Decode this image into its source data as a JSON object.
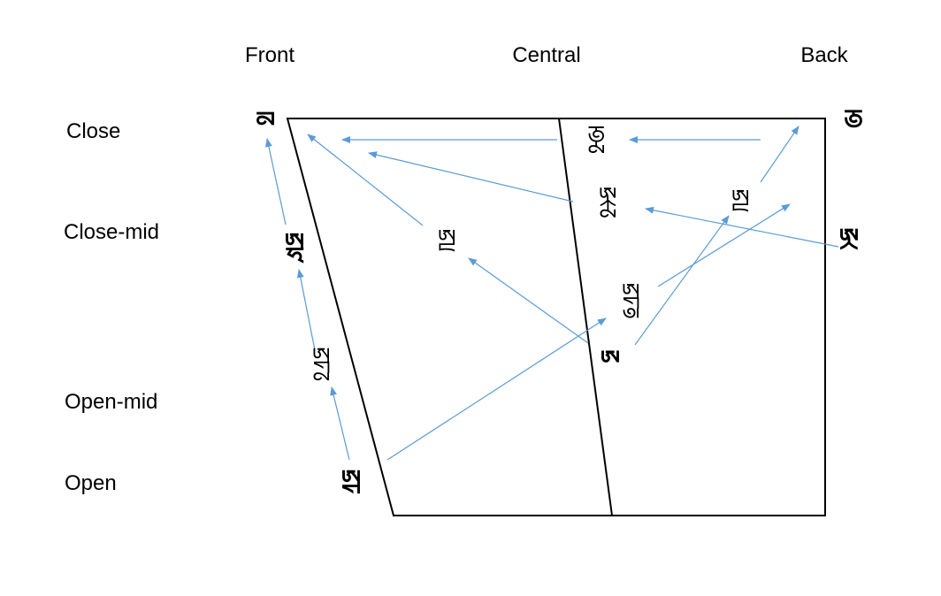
{
  "columns": {
    "front": "Front",
    "central": "Central",
    "back": "Back"
  },
  "rows": {
    "close": "Close",
    "close_mid": "Close-mid",
    "open_mid": "Open-mid",
    "open": "Open"
  },
  "vowels": {
    "front_close": "ꡞ",
    "front_close_mid": "ꡝꡜ",
    "front_diphthong": "ꡝꡠꡞ",
    "front_open": "ꡝꡠ",
    "central_front_mid": "ꡝꡦ",
    "central_close": "ꡟꡞ",
    "central_close_mid": "ꡝꡡꡞ",
    "central_mid_diphthong": "ꡝꡠꡟ",
    "central_open": "ꡝ",
    "back_close_mid_inner": "ꡝꡦ",
    "back_close": "ꡟ",
    "back_close_mid": "ꡝꡡ"
  },
  "colors": {
    "frame": "#000000",
    "arrow": "#5B9BD5",
    "text": "#000000"
  }
}
